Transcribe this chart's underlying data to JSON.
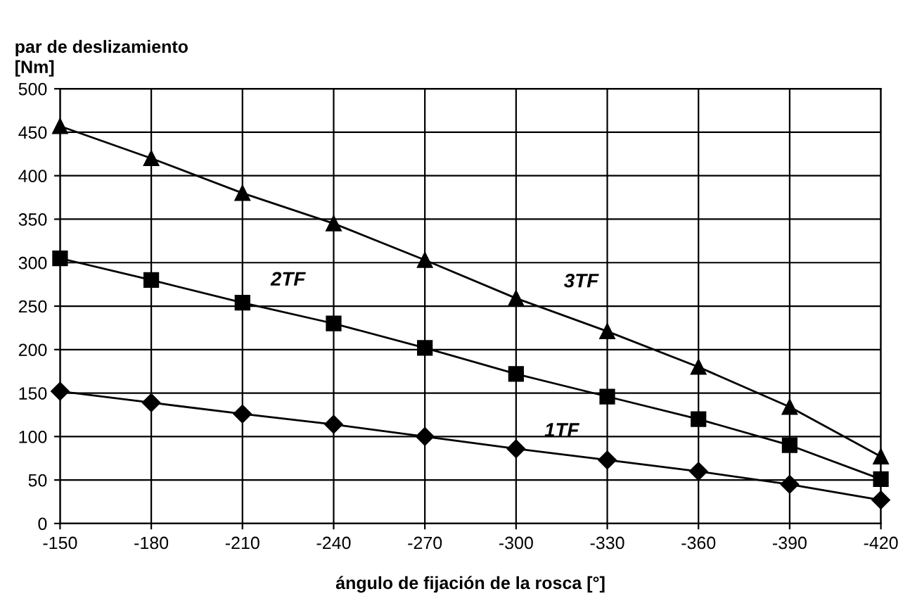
{
  "chart_data": {
    "type": "line",
    "ylabel": "par de deslizamiento\n[Nm]",
    "xlabel": "ángulo de fijación de la rosca [°]",
    "x": [
      -150,
      -180,
      -210,
      -240,
      -270,
      -300,
      -330,
      -360,
      -390,
      -420
    ],
    "xlim": [
      -150,
      -420
    ],
    "xticks": [
      -150,
      -180,
      -210,
      -240,
      -270,
      -300,
      -330,
      -360,
      -390,
      -420
    ],
    "ylim": [
      0,
      500
    ],
    "yticks": [
      0,
      50,
      100,
      150,
      200,
      250,
      300,
      350,
      400,
      450,
      500
    ],
    "grid": true,
    "legend": false,
    "line_style": "solid",
    "series": [
      {
        "name": "1TF",
        "color": "#000000",
        "marker": "diamond",
        "values": [
          152,
          139,
          126,
          114,
          100,
          86,
          73,
          60,
          45,
          27
        ]
      },
      {
        "name": "2TF",
        "color": "#000000",
        "marker": "square",
        "values": [
          305,
          280,
          254,
          230,
          202,
          172,
          146,
          120,
          90,
          51
        ]
      },
      {
        "name": "3TF",
        "color": "#000000",
        "marker": "triangle",
        "values": [
          457,
          420,
          380,
          345,
          303,
          259,
          221,
          180,
          134,
          77
        ]
      }
    ]
  }
}
